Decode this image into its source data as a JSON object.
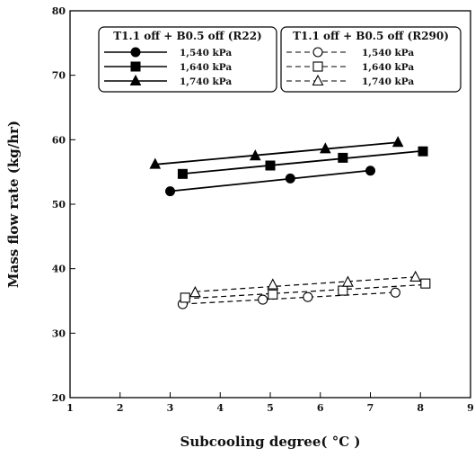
{
  "chart_data": {
    "type": "line",
    "xlabel": "Subcooling degree( °C )",
    "ylabel": "Mass flow rate (kg/hr)",
    "xlim": [
      1,
      9
    ],
    "ylim": [
      20,
      80
    ],
    "xticks": [
      1,
      2,
      3,
      4,
      5,
      6,
      7,
      8,
      9
    ],
    "yticks": [
      20,
      30,
      40,
      50,
      60,
      70,
      80
    ],
    "grid": false,
    "legends": [
      {
        "title": "T1.1 off + B0.5 off (R22)",
        "placement": "top-left",
        "entries": [
          "1,540 kPa",
          "1,640 kPa",
          "1,740 kPa"
        ]
      },
      {
        "title": "T1.1 off + B0.5 off (R290)",
        "placement": "top-right",
        "entries": [
          "1,540 kPa",
          "1,640 kPa",
          "1,740 kPa"
        ]
      }
    ],
    "series": [
      {
        "name": "1,540 kPa",
        "legend": 0,
        "marker": "circle",
        "filled": true,
        "dashed": false,
        "x": [
          3.0,
          5.4,
          7.0
        ],
        "y": [
          52.0,
          54.0,
          55.2
        ]
      },
      {
        "name": "1,640 kPa",
        "legend": 0,
        "marker": "square",
        "filled": true,
        "dashed": false,
        "x": [
          3.25,
          5.0,
          6.45,
          8.05
        ],
        "y": [
          54.7,
          56.0,
          57.2,
          58.2
        ]
      },
      {
        "name": "1,740 kPa",
        "legend": 0,
        "marker": "triangle",
        "filled": true,
        "dashed": false,
        "x": [
          2.7,
          4.7,
          6.1,
          7.55
        ],
        "y": [
          56.2,
          57.5,
          58.6,
          59.6
        ]
      },
      {
        "name": "1,540 kPa",
        "legend": 1,
        "marker": "circle",
        "filled": false,
        "dashed": true,
        "x": [
          3.25,
          4.85,
          5.75,
          7.5
        ],
        "y": [
          34.5,
          35.2,
          35.6,
          36.3
        ]
      },
      {
        "name": "1,640 kPa",
        "legend": 1,
        "marker": "square",
        "filled": false,
        "dashed": true,
        "x": [
          3.3,
          5.05,
          6.45,
          8.1
        ],
        "y": [
          35.5,
          36.0,
          36.6,
          37.7
        ]
      },
      {
        "name": "1,740 kPa",
        "legend": 1,
        "marker": "triangle",
        "filled": false,
        "dashed": true,
        "x": [
          3.5,
          5.05,
          6.55,
          7.9
        ],
        "y": [
          36.3,
          37.5,
          37.9,
          38.7
        ]
      }
    ]
  }
}
